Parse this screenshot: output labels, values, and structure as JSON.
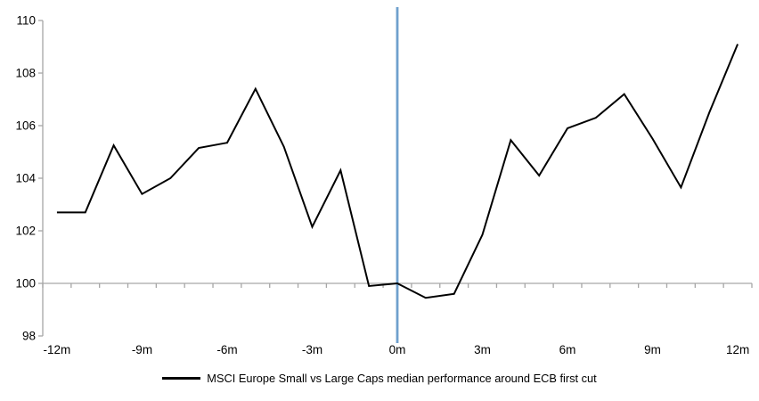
{
  "chart": {
    "legend_label": "MSCI Europe Small vs Large Caps median performance around ECB first cut",
    "colors": {
      "series": "#000000",
      "axis": "#a6a6a6",
      "event_line": "#6fa0cd",
      "text": "#000000",
      "background": "#ffffff"
    }
  },
  "chart_data": {
    "type": "line",
    "title": "",
    "xlabel": "",
    "ylabel": "",
    "categories": [
      "-12m",
      "-11m",
      "-10m",
      "-9m",
      "-8m",
      "-7m",
      "-6m",
      "-5m",
      "-4m",
      "-3m",
      "-2m",
      "-1m",
      "0m",
      "1m",
      "2m",
      "3m",
      "4m",
      "5m",
      "6m",
      "7m",
      "8m",
      "9m",
      "10m",
      "11m",
      "12m"
    ],
    "series": [
      {
        "name": "MSCI Europe Small vs Large Caps median performance around ECB first cut",
        "values": [
          102.7,
          102.7,
          105.25,
          103.4,
          104.0,
          105.15,
          105.35,
          107.4,
          105.2,
          102.15,
          104.3,
          99.9,
          100.0,
          99.45,
          99.6,
          101.85,
          105.45,
          104.1,
          105.9,
          106.3,
          107.2,
          105.5,
          103.65,
          106.5,
          109.1
        ]
      }
    ],
    "x_tick_labels_shown": [
      "-12m",
      "-9m",
      "-6m",
      "-3m",
      "0m",
      "3m",
      "6m",
      "9m",
      "12m"
    ],
    "y_ticks": [
      98,
      100,
      102,
      104,
      106,
      108,
      110
    ],
    "ylim": [
      98,
      110
    ],
    "grid": false,
    "category_axis_crosses_at": 100,
    "event_line_at_category": "0m",
    "legend_position": "bottom-center"
  }
}
